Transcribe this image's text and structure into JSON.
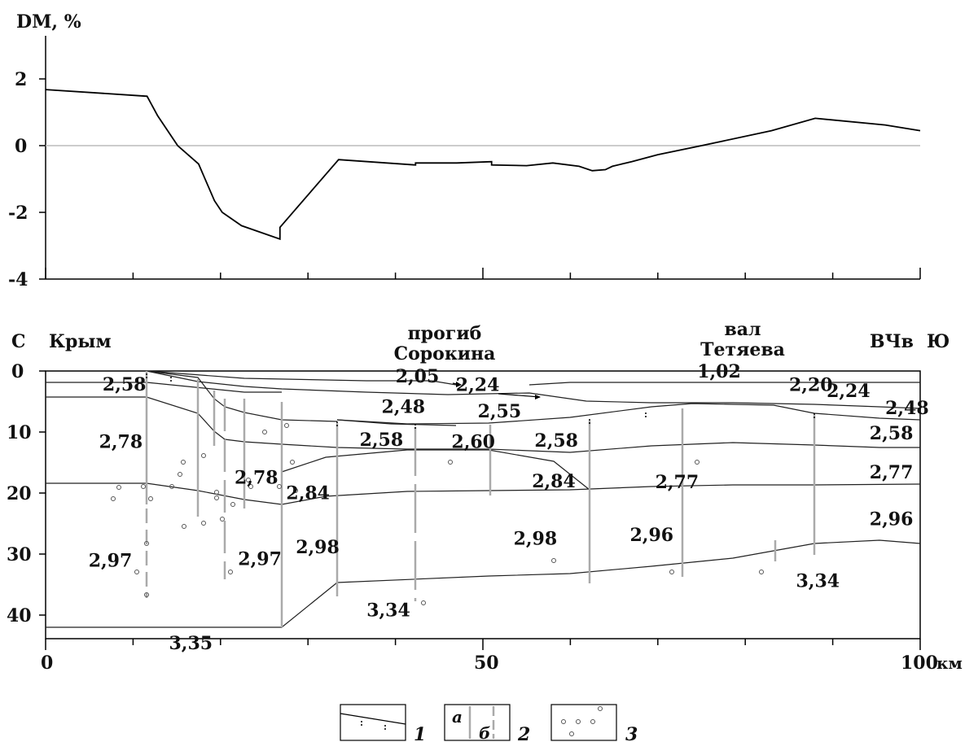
{
  "chart_data": {
    "type": "line",
    "ylabel": "DM, %",
    "ylim": [
      -4,
      3
    ],
    "yticks": [
      "2",
      "0",
      "-2",
      "-4"
    ],
    "x_range": [
      0,
      100
    ],
    "series": [
      {
        "x": [
          0,
          11.6,
          12.8,
          15.1,
          17.5,
          19.3,
          20.2,
          22.4,
          26.8,
          26.8,
          33.5,
          42.3,
          42.3,
          47.0,
          51.0,
          51.0,
          55.0,
          58.0,
          61.0,
          62.5,
          64.0,
          64.8,
          67.0,
          70.0,
          75.0,
          83.0,
          88.0,
          96.0,
          100
        ],
        "y": [
          1.68,
          1.48,
          0.9,
          0.0,
          -0.55,
          -1.65,
          -2.0,
          -2.4,
          -2.8,
          -2.45,
          -0.42,
          -0.58,
          -0.52,
          -0.52,
          -0.48,
          -0.58,
          -0.6,
          -0.52,
          -0.62,
          -0.75,
          -0.72,
          -0.62,
          -0.48,
          -0.27,
          0.0,
          0.45,
          0.82,
          0.62,
          0.45
        ]
      }
    ]
  },
  "section": {
    "label_north": "С",
    "label_south": "Ю",
    "label_crimea": "Крым",
    "label_trough": [
      "прогиб",
      "Сорокина"
    ],
    "label_swell": [
      "вал",
      "Тетяева"
    ],
    "label_vchv": "ВЧв",
    "depth_ticks": [
      "0",
      "10",
      "20",
      "30",
      "40"
    ],
    "x_ticks": [
      "0",
      "50",
      "100"
    ],
    "x_unit": "км",
    "densities": [
      {
        "text": "2,58",
        "x": 9.0,
        "d": 2.1
      },
      {
        "text": "2,78",
        "x": 8.6,
        "d": 11.5
      },
      {
        "text": "2,97",
        "x": 7.4,
        "d": 31.0
      },
      {
        "text": "3,35",
        "x": 16.6,
        "d": 44.5
      },
      {
        "text": "2,78",
        "x": 24.1,
        "d": 17.4
      },
      {
        "text": "2,97",
        "x": 24.5,
        "d": 30.7
      },
      {
        "text": "2,84",
        "x": 30.0,
        "d": 19.9
      },
      {
        "text": "2,98",
        "x": 31.1,
        "d": 28.8
      },
      {
        "text": "2,05",
        "x": 42.5,
        "d": 0.8
      },
      {
        "text": "2,24",
        "x": 49.4,
        "d": 2.2
      },
      {
        "text": "2,48",
        "x": 40.9,
        "d": 5.8
      },
      {
        "text": "2,55",
        "x": 51.9,
        "d": 6.5
      },
      {
        "text": "2,58",
        "x": 38.4,
        "d": 11.2
      },
      {
        "text": "2,60",
        "x": 48.9,
        "d": 11.5
      },
      {
        "text": "2,58",
        "x": 58.4,
        "d": 11.3
      },
      {
        "text": "2,84",
        "x": 58.1,
        "d": 18.0
      },
      {
        "text": "2,98",
        "x": 56.0,
        "d": 27.4
      },
      {
        "text": "3,34",
        "x": 39.2,
        "d": 39.1
      },
      {
        "text": "1,02",
        "x": 77.0,
        "d": 0.0
      },
      {
        "text": "2,77",
        "x": 72.2,
        "d": 18.1
      },
      {
        "text": "2,96",
        "x": 69.3,
        "d": 26.8
      },
      {
        "text": "2,20",
        "x": 87.5,
        "d": 2.2
      },
      {
        "text": "2,24",
        "x": 91.8,
        "d": 3.2
      },
      {
        "text": "2,48",
        "x": 98.5,
        "d": 6.0
      },
      {
        "text": "2,58",
        "x": 96.7,
        "d": 10.1
      },
      {
        "text": "2,77",
        "x": 96.7,
        "d": 16.5
      },
      {
        "text": "2,96",
        "x": 96.7,
        "d": 24.2
      },
      {
        "text": "3,34",
        "x": 88.3,
        "d": 34.3
      }
    ]
  },
  "legend": {
    "item1": "1",
    "item2": "2",
    "item2_a": "а",
    "item2_b": "б",
    "item3": "3"
  }
}
